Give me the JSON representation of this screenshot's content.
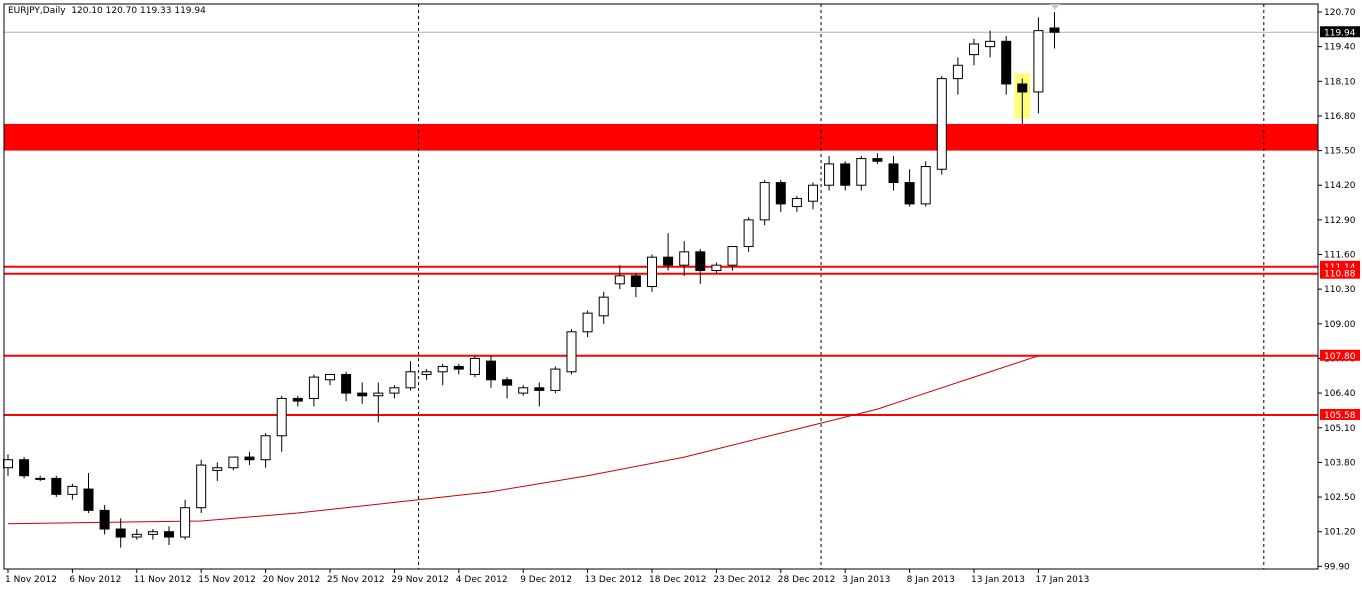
{
  "header": {
    "symbol": "EURJPY,Daily",
    "ohlc": "120.10 120.70 119.33 119.94"
  },
  "colors": {
    "background": "#ffffff",
    "frame": "#000000",
    "bull_body": "#ffffff",
    "bear_body": "#000000",
    "level_line": "#ff0000",
    "ma_line": "#cc0000",
    "highlight": "#ffff66",
    "current_price_bg": "#000000"
  },
  "chart_data": {
    "type": "candlestick",
    "symbol": "EURJPY",
    "timeframe": "Daily",
    "ylim": [
      99.8,
      121.0
    ],
    "y_ticks": [
      "120.70",
      "119.40",
      "118.10",
      "116.80",
      "115.50",
      "114.20",
      "112.90",
      "111.60",
      "110.30",
      "109.00",
      "107.70",
      "106.40",
      "105.10",
      "103.80",
      "102.50",
      "101.20",
      "99.90"
    ],
    "y_tick_values": [
      120.7,
      119.4,
      118.1,
      116.8,
      115.5,
      114.2,
      112.9,
      111.6,
      110.3,
      109.0,
      107.7,
      106.4,
      105.1,
      103.8,
      102.5,
      101.2,
      99.9
    ],
    "x_labels": [
      {
        "text": "1 Nov 2012",
        "bar": 0
      },
      {
        "text": "6 Nov 2012",
        "bar": 4
      },
      {
        "text": "11 Nov 2012",
        "bar": 8
      },
      {
        "text": "15 Nov 2012",
        "bar": 12
      },
      {
        "text": "20 Nov 2012",
        "bar": 16
      },
      {
        "text": "25 Nov 2012",
        "bar": 20
      },
      {
        "text": "29 Nov 2012",
        "bar": 24
      },
      {
        "text": "4 Dec 2012",
        "bar": 28
      },
      {
        "text": "9 Dec 2012",
        "bar": 32
      },
      {
        "text": "13 Dec 2012",
        "bar": 36
      },
      {
        "text": "18 Dec 2012",
        "bar": 40
      },
      {
        "text": "23 Dec 2012",
        "bar": 44
      },
      {
        "text": "28 Dec 2012",
        "bar": 48
      },
      {
        "text": "3 Jan 2013",
        "bar": 52
      },
      {
        "text": "8 Jan 2013",
        "bar": 56
      },
      {
        "text": "13 Jan 2013",
        "bar": 60
      },
      {
        "text": "17 Jan 2013",
        "bar": 64
      }
    ],
    "vlines_at_bar": [
      25.5,
      50.5,
      78
    ],
    "candles": [
      [
        103.6,
        104.1,
        103.3,
        103.9
      ],
      [
        103.9,
        104.0,
        103.2,
        103.3
      ],
      [
        103.2,
        103.3,
        103.1,
        103.2
      ],
      [
        103.2,
        103.3,
        102.5,
        102.6
      ],
      [
        102.6,
        103.0,
        102.4,
        102.9
      ],
      [
        102.8,
        103.4,
        101.9,
        102.0
      ],
      [
        102.0,
        102.2,
        101.1,
        101.3
      ],
      [
        101.3,
        101.7,
        100.6,
        101.0
      ],
      [
        101.0,
        101.3,
        100.9,
        101.1
      ],
      [
        101.1,
        101.3,
        100.9,
        101.2
      ],
      [
        101.2,
        101.4,
        100.7,
        101.0
      ],
      [
        101.0,
        102.4,
        100.9,
        102.1
      ],
      [
        102.1,
        103.9,
        101.9,
        103.7
      ],
      [
        103.5,
        103.8,
        103.1,
        103.6
      ],
      [
        103.6,
        104.0,
        103.5,
        104.0
      ],
      [
        104.0,
        104.2,
        103.7,
        103.9
      ],
      [
        103.9,
        104.9,
        103.6,
        104.8
      ],
      [
        104.8,
        106.3,
        104.2,
        106.2
      ],
      [
        106.2,
        106.3,
        105.9,
        106.1
      ],
      [
        106.2,
        107.1,
        105.9,
        107.0
      ],
      [
        106.9,
        107.1,
        106.7,
        107.1
      ],
      [
        107.1,
        107.2,
        106.1,
        106.4
      ],
      [
        106.4,
        106.8,
        106.0,
        106.3
      ],
      [
        106.3,
        106.8,
        105.3,
        106.4
      ],
      [
        106.4,
        106.7,
        106.2,
        106.6
      ],
      [
        106.6,
        107.6,
        106.5,
        107.2
      ],
      [
        107.1,
        107.3,
        106.9,
        107.2
      ],
      [
        107.2,
        107.5,
        106.7,
        107.4
      ],
      [
        107.4,
        107.5,
        107.1,
        107.3
      ],
      [
        107.1,
        107.8,
        107.0,
        107.7
      ],
      [
        107.6,
        107.8,
        106.6,
        106.9
      ],
      [
        106.9,
        107.0,
        106.2,
        106.7
      ],
      [
        106.4,
        106.7,
        106.3,
        106.6
      ],
      [
        106.6,
        106.8,
        105.9,
        106.5
      ],
      [
        106.5,
        107.4,
        106.4,
        107.3
      ],
      [
        107.2,
        108.8,
        107.1,
        108.7
      ],
      [
        108.7,
        109.5,
        108.5,
        109.4
      ],
      [
        109.3,
        110.2,
        109.0,
        110.0
      ],
      [
        110.5,
        111.2,
        110.3,
        110.8
      ],
      [
        110.8,
        110.9,
        110.0,
        110.4
      ],
      [
        110.4,
        111.6,
        110.2,
        111.5
      ],
      [
        111.5,
        112.4,
        111.0,
        111.2
      ],
      [
        111.2,
        112.1,
        110.8,
        111.7
      ],
      [
        111.7,
        111.8,
        110.5,
        111.0
      ],
      [
        111.0,
        111.3,
        110.9,
        111.2
      ],
      [
        111.2,
        111.9,
        111.0,
        111.9
      ],
      [
        111.9,
        113.0,
        111.7,
        112.9
      ],
      [
        112.9,
        114.4,
        112.7,
        114.3
      ],
      [
        114.3,
        114.4,
        113.2,
        113.5
      ],
      [
        113.4,
        113.8,
        113.2,
        113.7
      ],
      [
        113.6,
        114.3,
        113.3,
        114.2
      ],
      [
        114.2,
        115.3,
        114.0,
        115.0
      ],
      [
        115.0,
        115.1,
        114.0,
        114.2
      ],
      [
        114.2,
        115.3,
        114.0,
        115.2
      ],
      [
        115.2,
        115.4,
        115.0,
        115.1
      ],
      [
        115.0,
        115.3,
        114.0,
        114.3
      ],
      [
        114.3,
        114.8,
        113.4,
        113.5
      ],
      [
        113.5,
        115.1,
        113.4,
        114.9
      ],
      [
        114.8,
        118.3,
        114.6,
        118.2
      ],
      [
        118.2,
        119.0,
        117.6,
        118.7
      ],
      [
        119.1,
        119.7,
        118.7,
        119.5
      ],
      [
        119.4,
        120.0,
        119.0,
        119.6
      ],
      [
        119.6,
        119.8,
        117.6,
        118.0
      ],
      [
        118.0,
        118.2,
        116.5,
        117.7
      ],
      [
        117.7,
        120.5,
        116.9,
        120.0
      ],
      [
        120.1,
        120.7,
        119.33,
        119.94
      ]
    ],
    "levels": [
      {
        "type": "zone",
        "from": 115.5,
        "to": 116.5
      },
      {
        "type": "line",
        "value": 111.14,
        "label": "111.14"
      },
      {
        "type": "line",
        "value": 110.88,
        "label": "110.88"
      },
      {
        "type": "line",
        "value": 107.8,
        "label": "107.80"
      },
      {
        "type": "line",
        "value": 105.58,
        "label": "105.58"
      }
    ],
    "current_price": {
      "value": 119.94,
      "label": "119.94"
    },
    "highlight": {
      "bar": 63,
      "from": 116.7,
      "to": 118.4
    },
    "moving_average": {
      "bars": [
        0,
        12,
        18,
        24,
        30,
        36,
        42,
        48,
        54,
        60,
        64
      ],
      "values": [
        101.5,
        101.6,
        101.9,
        102.3,
        102.7,
        103.3,
        104.0,
        104.9,
        105.8,
        107.0,
        107.8
      ]
    }
  }
}
